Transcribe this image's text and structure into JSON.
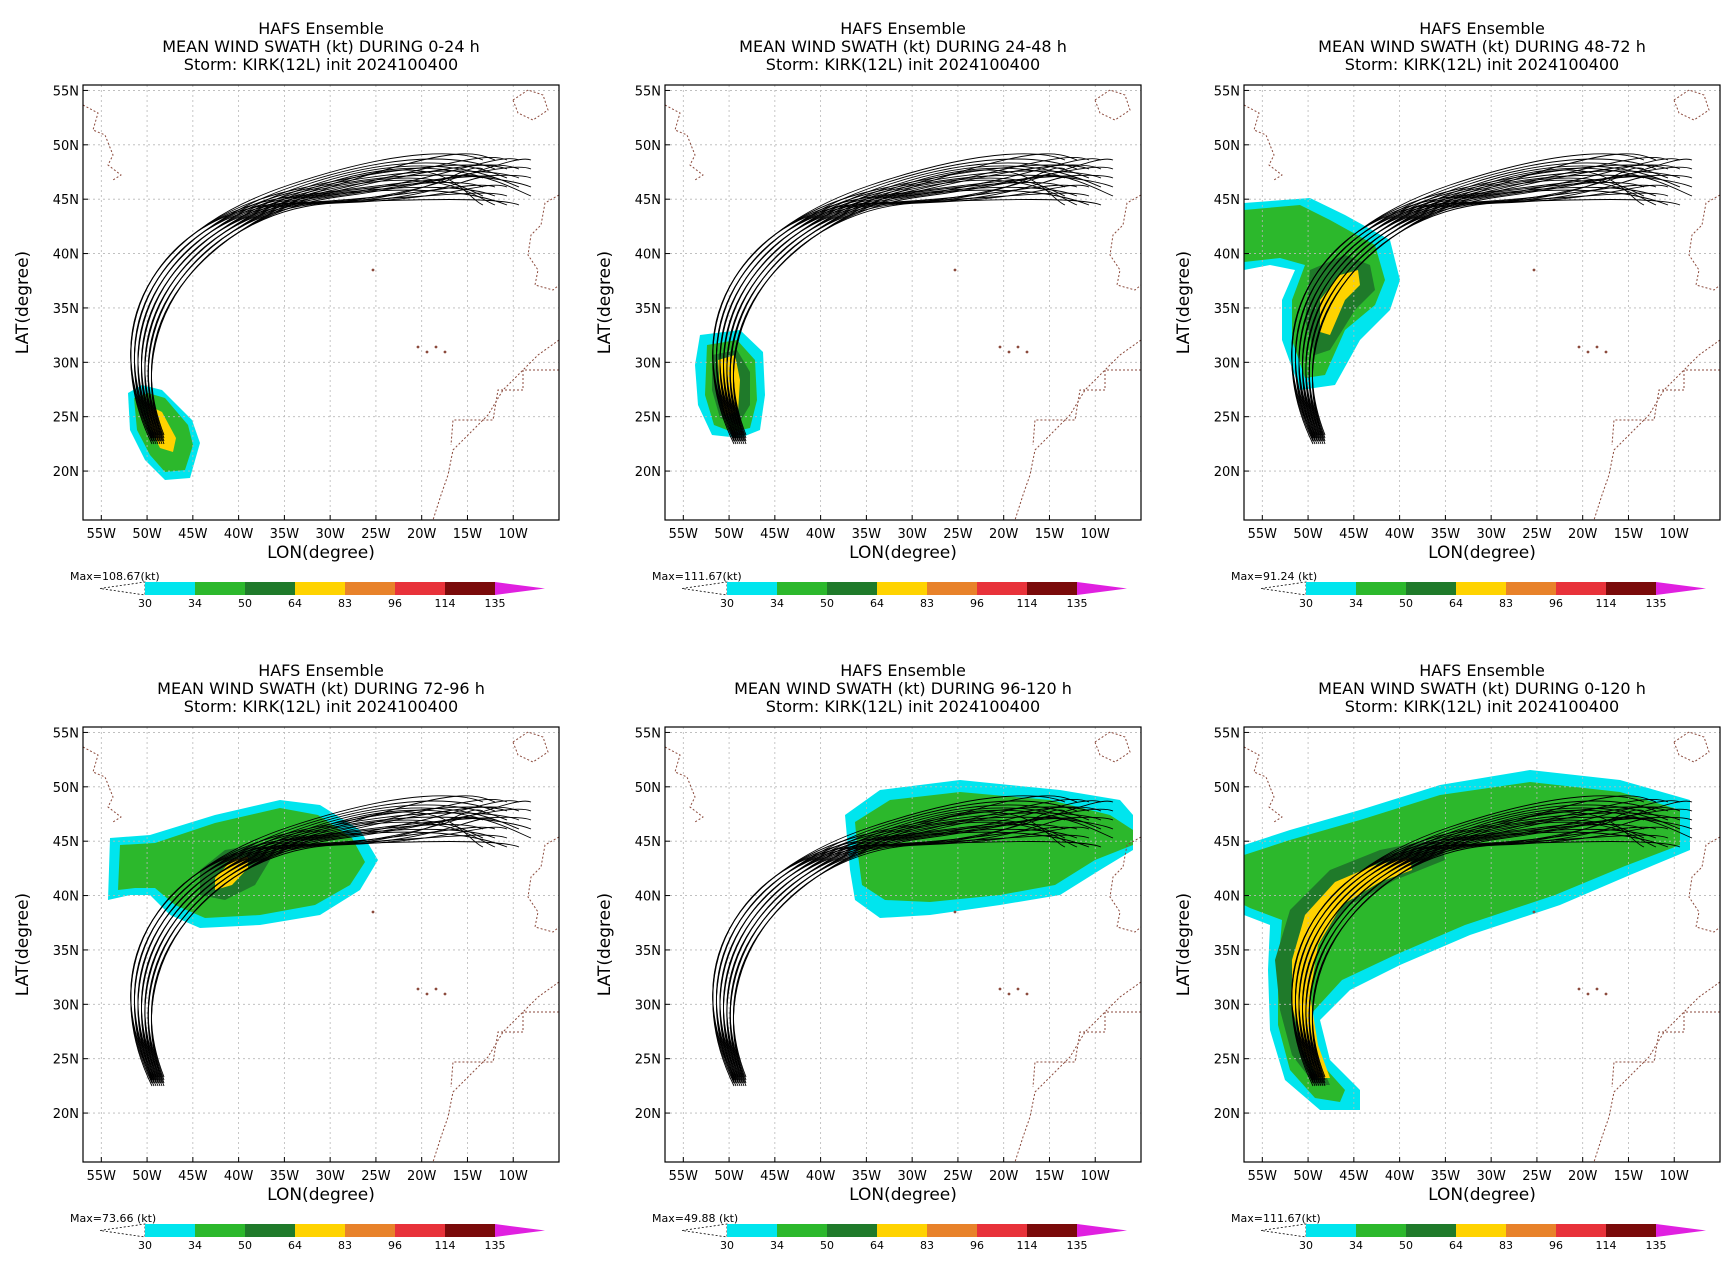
{
  "common": {
    "title_line1": "HAFS Ensemble",
    "storm_line": "Storm: KIRK(12L) init 2024100400",
    "xlabel": "LON(degree)",
    "ylabel": "LAT(degree)",
    "lon_ticks": [
      "55W",
      "50W",
      "45W",
      "40W",
      "35W",
      "30W",
      "25W",
      "20W",
      "15W",
      "10W"
    ],
    "lon_values": [
      -55,
      -50,
      -45,
      -40,
      -35,
      -30,
      -25,
      -20,
      -15,
      -10
    ],
    "lat_ticks": [
      "55N",
      "50N",
      "45N",
      "40N",
      "35N",
      "30N",
      "25N",
      "20N"
    ],
    "lat_values": [
      55,
      50,
      45,
      40,
      35,
      30,
      25,
      20
    ],
    "lon_range": [
      -57,
      -5
    ],
    "lat_range": [
      15.5,
      55.5
    ],
    "grid": "dotted"
  },
  "legend": {
    "levels": [
      "30",
      "34",
      "50",
      "64",
      "83",
      "96",
      "114",
      "135"
    ],
    "colors": [
      "#00e5ee",
      "#2cb82c",
      "#1f7a2a",
      "#ffd300",
      "#e8822a",
      "#e8323a",
      "#7a0a0a",
      "#e020e0"
    ]
  },
  "panels": [
    {
      "line2": "MEAN WIND SWATH (kt) DURING  0-24 h",
      "max_label": "Max=108.67(kt)"
    },
    {
      "line2": "MEAN WIND SWATH (kt) DURING 24-48 h",
      "max_label": "Max=111.67(kt)"
    },
    {
      "line2": "MEAN WIND SWATH (kt) DURING 48-72 h",
      "max_label": "Max=91.24 (kt)"
    },
    {
      "line2": "MEAN WIND SWATH (kt) DURING 72-96 h",
      "max_label": "Max=73.66 (kt)"
    },
    {
      "line2": "MEAN WIND SWATH (kt) DURING 96-120 h",
      "max_label": "Max=49.88 (kt)"
    },
    {
      "line2": "MEAN WIND SWATH (kt) DURING 0-120 h",
      "max_label": "Max=111.67(kt)"
    }
  ]
}
